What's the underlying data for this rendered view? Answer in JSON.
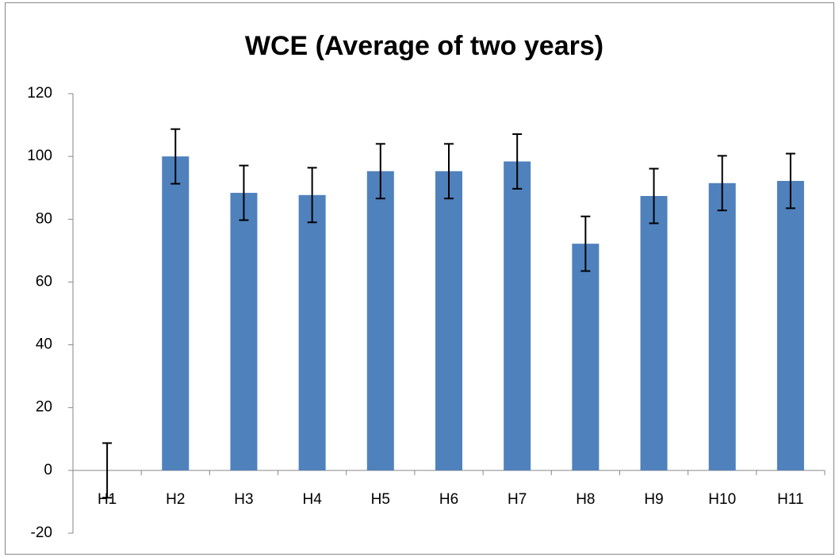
{
  "chart_data": {
    "type": "bar",
    "title": "WCE (Average of two years)",
    "categories": [
      "H1",
      "H2",
      "H3",
      "H4",
      "H5",
      "H6",
      "H7",
      "H8",
      "H9",
      "H10",
      "H11"
    ],
    "values": [
      0,
      100,
      88.4,
      87.7,
      95.3,
      95.3,
      98.4,
      72.2,
      87.4,
      91.5,
      92.2
    ],
    "errors": [
      8.7,
      8.7,
      8.7,
      8.7,
      8.7,
      8.7,
      8.7,
      8.7,
      8.7,
      8.7,
      8.7
    ],
    "color": "#4f81bd",
    "ylim": [
      -20,
      120
    ],
    "yticks": [
      -20,
      0,
      20,
      40,
      60,
      80,
      100,
      120
    ],
    "grid": false
  }
}
